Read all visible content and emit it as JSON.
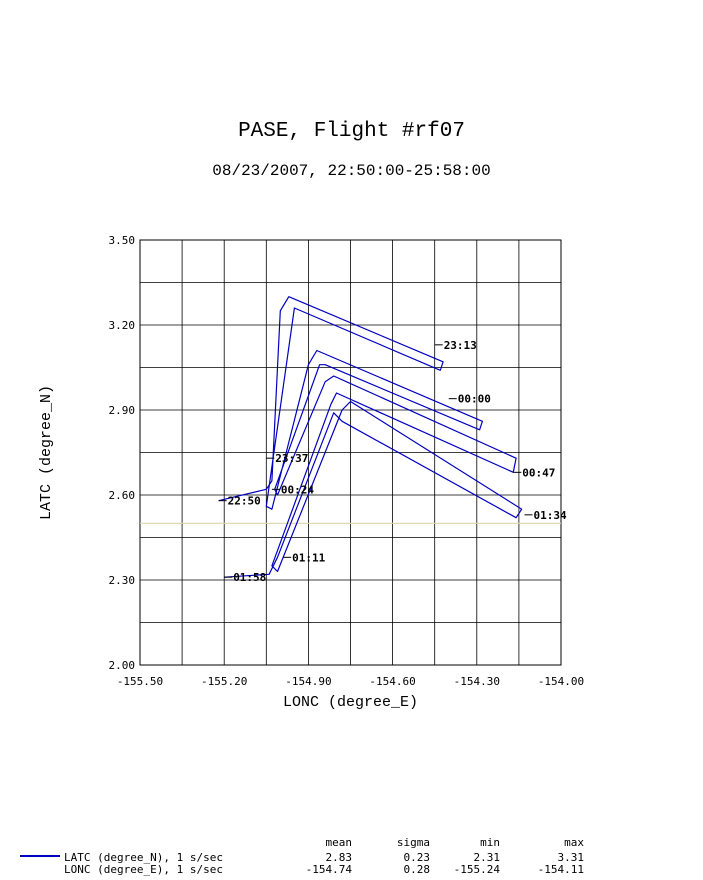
{
  "title": "PASE, Flight #rf07",
  "subtitle": "08/23/2007, 22:50:00-25:58:00",
  "chart_data": {
    "type": "line",
    "xlabel": "LONC (degree_E)",
    "ylabel": "LATC (degree_N)",
    "xlim": [
      -155.5,
      -154.0
    ],
    "ylim": [
      2.0,
      3.5
    ],
    "xticks": [
      "-155.50",
      "-155.20",
      "-154.90",
      "-154.60",
      "-154.30",
      "-154.00"
    ],
    "yticks": [
      "2.00",
      "2.30",
      "2.60",
      "2.90",
      "3.20",
      "3.50"
    ],
    "grid": true,
    "reference_line_y": 2.5,
    "series": [
      {
        "name": "LATC (degree_N), 1 s/sec",
        "color": "#0000c0",
        "points": [
          [
            -155.22,
            2.58
          ],
          [
            -155.05,
            2.62
          ],
          [
            -155.03,
            2.65
          ],
          [
            -155.0,
            3.25
          ],
          [
            -154.97,
            3.3
          ],
          [
            -154.42,
            3.07
          ],
          [
            -154.43,
            3.04
          ],
          [
            -154.95,
            3.26
          ],
          [
            -155.05,
            2.56
          ],
          [
            -155.03,
            2.55
          ],
          [
            -154.9,
            3.06
          ],
          [
            -154.87,
            3.11
          ],
          [
            -154.28,
            2.86
          ],
          [
            -154.29,
            2.83
          ],
          [
            -154.84,
            3.06
          ],
          [
            -154.86,
            3.06
          ],
          [
            -155.02,
            2.62
          ],
          [
            -155.01,
            2.6
          ],
          [
            -154.84,
            3.0
          ],
          [
            -154.81,
            3.02
          ],
          [
            -154.16,
            2.73
          ],
          [
            -154.17,
            2.68
          ],
          [
            -154.8,
            2.96
          ],
          [
            -154.82,
            2.92
          ],
          [
            -155.03,
            2.35
          ],
          [
            -155.01,
            2.33
          ],
          [
            -154.78,
            2.9
          ],
          [
            -154.75,
            2.93
          ],
          [
            -154.14,
            2.55
          ],
          [
            -154.16,
            2.52
          ],
          [
            -154.78,
            2.86
          ],
          [
            -154.81,
            2.89
          ],
          [
            -155.01,
            2.38
          ],
          [
            -155.04,
            2.32
          ],
          [
            -155.2,
            2.31
          ]
        ]
      }
    ],
    "annotations": [
      {
        "label": "22:50",
        "x": -155.22,
        "y": 2.58
      },
      {
        "label": "23:13",
        "x": -154.45,
        "y": 3.13
      },
      {
        "label": "23:37",
        "x": -155.05,
        "y": 2.73
      },
      {
        "label": "00:00",
        "x": -154.4,
        "y": 2.94
      },
      {
        "label": "00:24",
        "x": -155.03,
        "y": 2.62
      },
      {
        "label": "00:47",
        "x": -154.17,
        "y": 2.68
      },
      {
        "label": "01:11",
        "x": -154.99,
        "y": 2.38
      },
      {
        "label": "01:34",
        "x": -154.13,
        "y": 2.53
      },
      {
        "label": "01:58",
        "x": -155.2,
        "y": 2.31
      }
    ]
  },
  "stats": {
    "headers": [
      "mean",
      "sigma",
      "min",
      "max"
    ],
    "rows": [
      {
        "label": "LATC (degree_N), 1 s/sec",
        "mean": "2.83",
        "sigma": "0.23",
        "min": "2.31",
        "max": "3.31"
      },
      {
        "label": "LONC (degree_E), 1 s/sec",
        "mean": "-154.74",
        "sigma": "0.28",
        "min": "-155.24",
        "max": "-154.11"
      }
    ]
  }
}
